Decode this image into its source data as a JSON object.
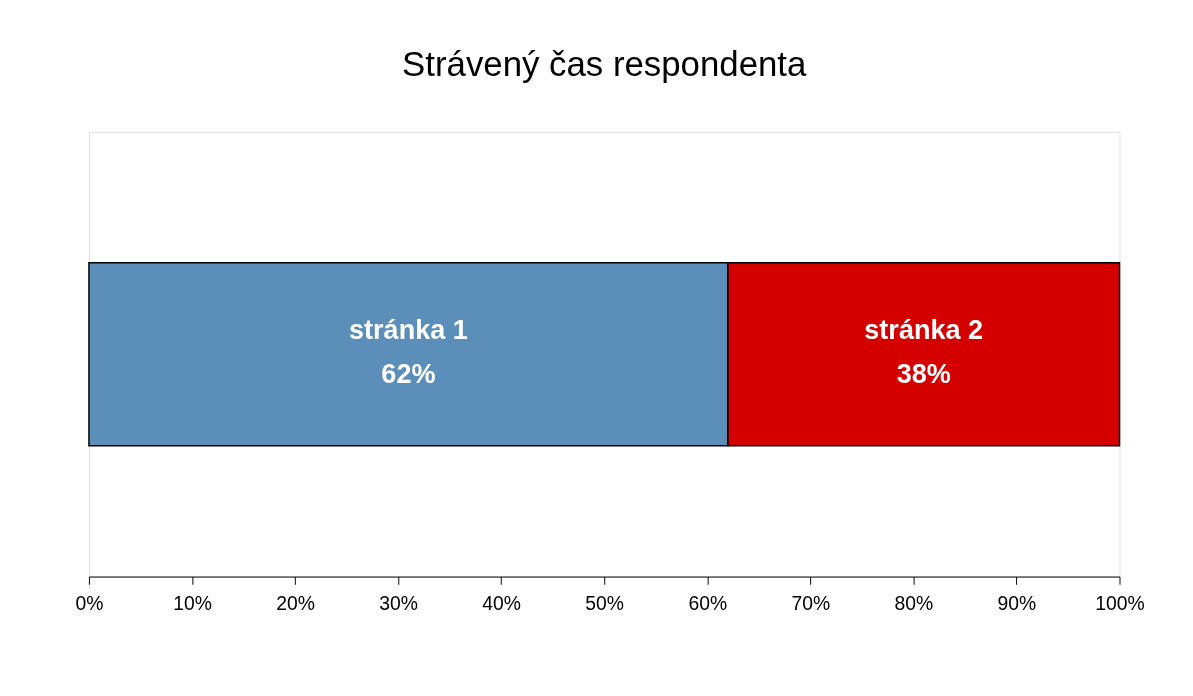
{
  "chart_data": {
    "type": "bar",
    "orientation": "horizontal",
    "stacked": true,
    "title": "Strávený čas respondenta",
    "categories": [
      null
    ],
    "series": [
      {
        "name": "stránka 1",
        "color": "#5b8fb9",
        "values": [
          62
        ],
        "value_labels": [
          "62%"
        ]
      },
      {
        "name": "stránka 2",
        "color": "#d40000",
        "values": [
          38
        ],
        "value_labels": [
          "38%"
        ]
      }
    ],
    "xlim": [
      0,
      100
    ],
    "xticks": [
      {
        "value": 0,
        "label": "0%"
      },
      {
        "value": 10,
        "label": "10%"
      },
      {
        "value": 20,
        "label": "20%"
      },
      {
        "value": 30,
        "label": "30%"
      },
      {
        "value": 40,
        "label": "40%"
      },
      {
        "value": 50,
        "label": "50%"
      },
      {
        "value": 60,
        "label": "60%"
      },
      {
        "value": 70,
        "label": "70%"
      },
      {
        "value": 80,
        "label": "80%"
      },
      {
        "value": 90,
        "label": "90%"
      },
      {
        "value": 100,
        "label": "100%"
      }
    ],
    "grid": false,
    "legend": false
  }
}
